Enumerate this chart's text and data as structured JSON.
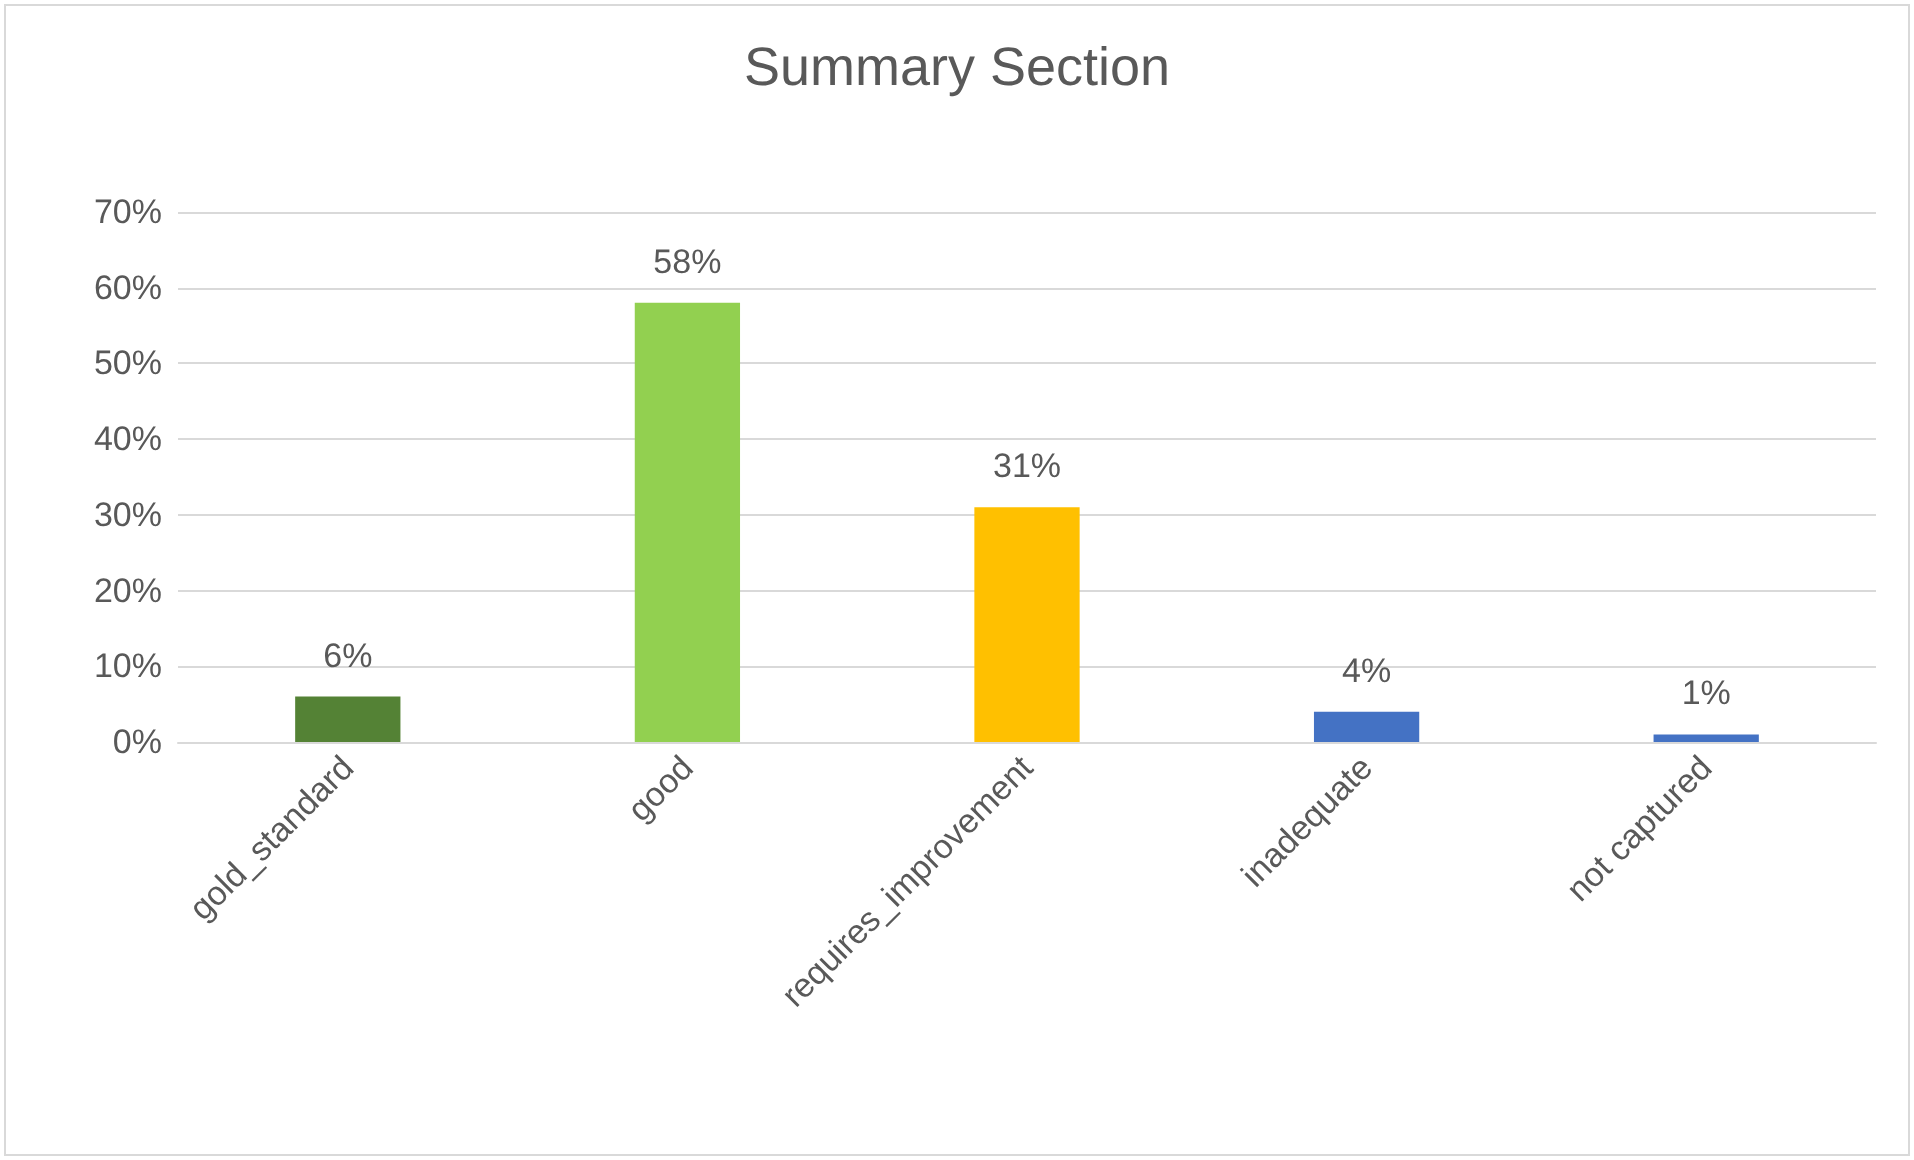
{
  "chart_data": {
    "type": "bar",
    "title": "Summary Section",
    "categories": [
      "gold_standard",
      "good",
      "requires_improvement",
      "inadequate",
      "not captured"
    ],
    "values": [
      6,
      58,
      31,
      4,
      1
    ],
    "colors": [
      "#548235",
      "#92d050",
      "#ffc000",
      "#4472c4",
      "#4472c4"
    ],
    "value_labels": [
      "6%",
      "58%",
      "31%",
      "4%",
      "1%"
    ],
    "ylim": [
      0,
      70
    ],
    "yticks": [
      {
        "value": 0,
        "label": "0%"
      },
      {
        "value": 10,
        "label": "10%"
      },
      {
        "value": 20,
        "label": "20%"
      },
      {
        "value": 30,
        "label": "30%"
      },
      {
        "value": 40,
        "label": "40%"
      },
      {
        "value": 50,
        "label": "50%"
      },
      {
        "value": 60,
        "label": "60%"
      },
      {
        "value": 70,
        "label": "70%"
      }
    ],
    "grid": "y"
  }
}
